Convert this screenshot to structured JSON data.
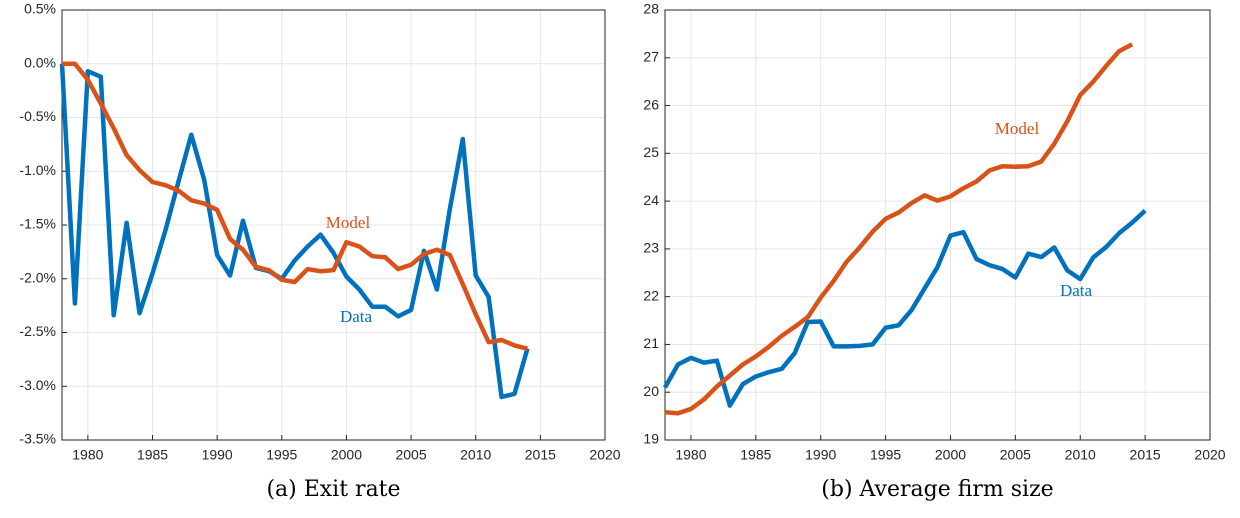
{
  "chart_data": [
    {
      "type": "line",
      "caption": "(a) Exit rate",
      "x": [
        1978,
        1979,
        1980,
        1981,
        1982,
        1983,
        1984,
        1985,
        1986,
        1987,
        1988,
        1989,
        1990,
        1991,
        1992,
        1993,
        1994,
        1995,
        1996,
        1997,
        1998,
        1999,
        2000,
        2001,
        2002,
        2003,
        2004,
        2005,
        2006,
        2007,
        2008,
        2009,
        2010,
        2011,
        2012,
        2013,
        2014
      ],
      "xlim": [
        1978,
        2020
      ],
      "xticks": [
        1980,
        1985,
        1990,
        1995,
        2000,
        2005,
        2010,
        2015,
        2020
      ],
      "ylim": [
        -3.5,
        0.5
      ],
      "yticks": [
        {
          "value": -3.5,
          "label": "-3.5%"
        },
        {
          "value": -3.0,
          "label": "-3.0%"
        },
        {
          "value": -2.5,
          "label": "-2.5%"
        },
        {
          "value": -2.0,
          "label": "-2.0%"
        },
        {
          "value": -1.5,
          "label": "-1.5%"
        },
        {
          "value": -1.0,
          "label": "-1.0%"
        },
        {
          "value": -0.5,
          "label": "-0.5%"
        },
        {
          "value": 0.0,
          "label": "0.0%"
        },
        {
          "value": 0.5,
          "label": "0.5%"
        }
      ],
      "grid": true,
      "series": [
        {
          "name": "Data",
          "color": "#0072BD",
          "values": [
            0.0,
            -2.23,
            -0.07,
            -0.12,
            -2.34,
            -1.48,
            -2.32,
            -1.95,
            -1.55,
            -1.1,
            -0.66,
            -1.08,
            -1.78,
            -1.97,
            -1.46,
            -1.9,
            -1.93,
            -2.0,
            -1.83,
            -1.7,
            -1.59,
            -1.76,
            -1.98,
            -2.1,
            -2.26,
            -2.26,
            -2.35,
            -2.29,
            -1.74,
            -2.1,
            -1.35,
            -0.7,
            -1.97,
            -2.17,
            -3.1,
            -3.07,
            -2.65
          ]
        },
        {
          "name": "Model",
          "color": "#D95319",
          "values": [
            0.0,
            0.0,
            -0.15,
            -0.37,
            -0.6,
            -0.85,
            -0.99,
            -1.1,
            -1.13,
            -1.18,
            -1.27,
            -1.3,
            -1.36,
            -1.63,
            -1.73,
            -1.89,
            -1.92,
            -2.01,
            -2.03,
            -1.91,
            -1.93,
            -1.92,
            -1.66,
            -1.7,
            -1.79,
            -1.8,
            -1.91,
            -1.87,
            -1.77,
            -1.73,
            -1.78,
            -2.05,
            -2.33,
            -2.59,
            -2.57,
            -2.62,
            -2.65
          ]
        }
      ]
    },
    {
      "type": "line",
      "caption": "(b) Average firm size",
      "x": [
        1978,
        1979,
        1980,
        1981,
        1982,
        1983,
        1984,
        1985,
        1986,
        1987,
        1988,
        1989,
        1990,
        1991,
        1992,
        1993,
        1994,
        1995,
        1996,
        1997,
        1998,
        1999,
        2000,
        2001,
        2002,
        2003,
        2004,
        2005,
        2006,
        2007,
        2008,
        2009,
        2010,
        2011,
        2012,
        2013,
        2014,
        2015
      ],
      "xlim": [
        1978,
        2020
      ],
      "xticks": [
        1980,
        1985,
        1990,
        1995,
        2000,
        2005,
        2010,
        2015,
        2020
      ],
      "ylim": [
        19,
        28
      ],
      "yticks": [
        19,
        20,
        21,
        22,
        23,
        24,
        25,
        26,
        27,
        28
      ],
      "grid": true,
      "series": [
        {
          "name": "Data",
          "color": "#0072BD",
          "values": [
            20.1,
            20.58,
            20.72,
            20.62,
            20.66,
            19.72,
            20.17,
            20.33,
            20.42,
            20.49,
            20.82,
            21.47,
            21.48,
            20.96,
            20.96,
            20.97,
            21.0,
            21.35,
            21.4,
            21.72,
            22.17,
            22.62,
            23.28,
            23.35,
            22.79,
            22.66,
            22.58,
            22.4,
            22.9,
            22.83,
            23.03,
            22.55,
            22.37,
            22.82,
            23.04,
            23.33,
            23.55,
            23.8
          ]
        },
        {
          "name": "Model",
          "color": "#D95319",
          "values": [
            19.58,
            19.56,
            19.65,
            19.85,
            20.12,
            20.35,
            20.58,
            20.75,
            20.95,
            21.18,
            21.37,
            21.57,
            21.98,
            22.33,
            22.73,
            23.03,
            23.36,
            23.63,
            23.76,
            23.96,
            24.12,
            24.01,
            24.1,
            24.27,
            24.41,
            24.64,
            24.73,
            24.72,
            24.73,
            24.83,
            25.2,
            25.67,
            26.22,
            26.5,
            26.83,
            27.14,
            27.28,
            null
          ]
        }
      ]
    }
  ]
}
